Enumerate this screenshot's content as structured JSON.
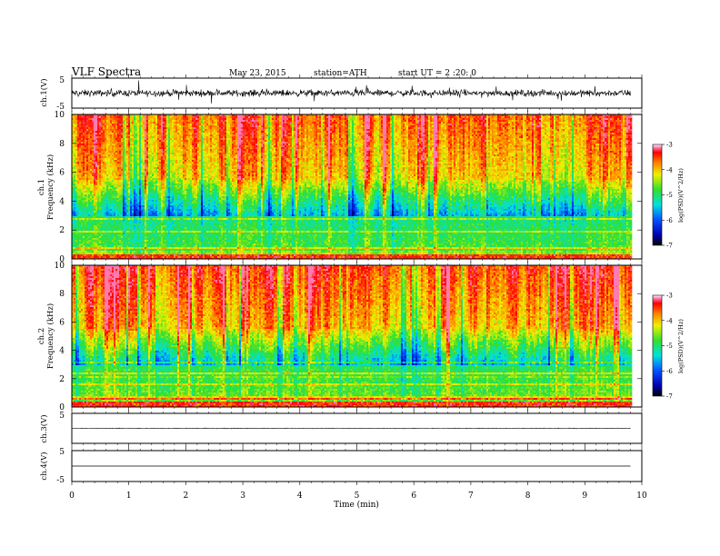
{
  "chart_data": {
    "type": "heatmap",
    "title": "VLF Spectra",
    "date": "May 23, 2015",
    "station": "station=ATH",
    "start_ut": "start UT = 2 :20: 0",
    "xlabel": "Time (min)",
    "xlim": [
      0,
      10
    ],
    "xticks": [
      "0",
      "1",
      "2",
      "3",
      "4",
      "5",
      "6",
      "7",
      "8",
      "9",
      "10"
    ],
    "data_end_min": 9.8,
    "channels": [
      {
        "name": "ch.1(V)",
        "type": "line",
        "ylim": [
          -5,
          5
        ],
        "yticks": [
          "5",
          "-5"
        ],
        "amplitude": 1.6
      },
      {
        "name": "ch.1",
        "type": "spectrogram",
        "ylabel": "Frequency (kHz)",
        "ylim": [
          0,
          10
        ],
        "yticks": [
          "0",
          "2",
          "4",
          "6",
          "8",
          "10"
        ],
        "colorbar": {
          "label": "log(PSD)(V^2/Hz)",
          "range": [
            -7,
            -3
          ],
          "ticks": [
            "-3",
            "-4",
            "-5",
            "-6",
            "-7"
          ]
        }
      },
      {
        "name": "ch.2",
        "type": "spectrogram",
        "ylabel": "Frequency (kHz)",
        "ylim": [
          0,
          10
        ],
        "yticks": [
          "0",
          "2",
          "4",
          "6",
          "8",
          "10"
        ],
        "colorbar": {
          "label": "log(PSD)(V^2/Hz)",
          "range": [
            -7,
            -3
          ],
          "ticks": [
            "-3",
            "-4",
            "-5",
            "-6",
            "-7"
          ]
        }
      },
      {
        "name": "ch.3(V)",
        "type": "line",
        "ylim": [
          -5,
          5
        ],
        "yticks": [
          "5"
        ],
        "amplitude": 0.15
      },
      {
        "name": "ch.4(V)",
        "type": "line",
        "ylim": [
          -5,
          5
        ],
        "yticks": [
          "5",
          "-5"
        ],
        "amplitude": 0.0
      }
    ]
  }
}
